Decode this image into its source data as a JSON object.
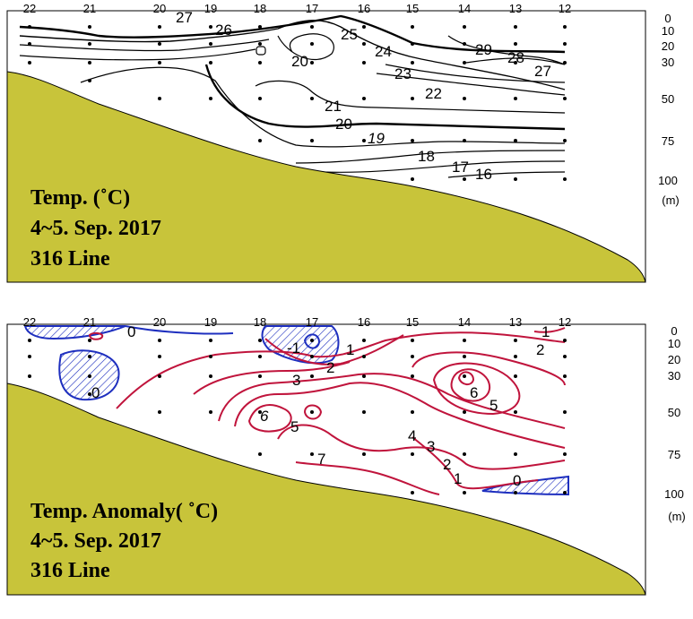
{
  "colors": {
    "seabed": "#C8C43A",
    "warm_contour": "#C0143C",
    "cold_contour": "#1E2FBF",
    "temp_contour": "#000000"
  },
  "chart_data": [
    {
      "type": "contour",
      "title_lines": [
        "Temp. (˚C)",
        "4~5. Sep. 2017",
        "316 Line"
      ],
      "x_tick_labels": [
        "22",
        "21",
        "20",
        "19",
        "18",
        "17",
        "16",
        "15",
        "14",
        "13",
        "12"
      ],
      "depth_tick_labels": [
        "0",
        "10",
        "20",
        "30",
        "50",
        "75",
        "100"
      ],
      "depth_unit": "(m)",
      "ylim": [
        0,
        100
      ],
      "contour_labels": [
        "27",
        "26",
        "25",
        "24",
        "23",
        "22",
        "21",
        "20",
        "20",
        "19",
        "18",
        "17",
        "16",
        "29",
        "28",
        "27"
      ]
    },
    {
      "type": "contour",
      "title_lines": [
        "Temp. Anomaly( ˚C)",
        "4~5. Sep. 2017",
        "316 Line"
      ],
      "x_tick_labels": [
        "22",
        "21",
        "20",
        "19",
        "18",
        "17",
        "16",
        "15",
        "14",
        "13",
        "12"
      ],
      "depth_tick_labels": [
        "0",
        "10",
        "20",
        "30",
        "50",
        "75",
        "100"
      ],
      "depth_unit": "(m)",
      "ylim": [
        0,
        100
      ],
      "contour_labels": [
        "0",
        "0",
        "-1",
        "1",
        "2",
        "3",
        "6",
        "5",
        "7",
        "4",
        "3",
        "2",
        "1",
        "6",
        "5",
        "2",
        "1",
        "0"
      ]
    }
  ]
}
